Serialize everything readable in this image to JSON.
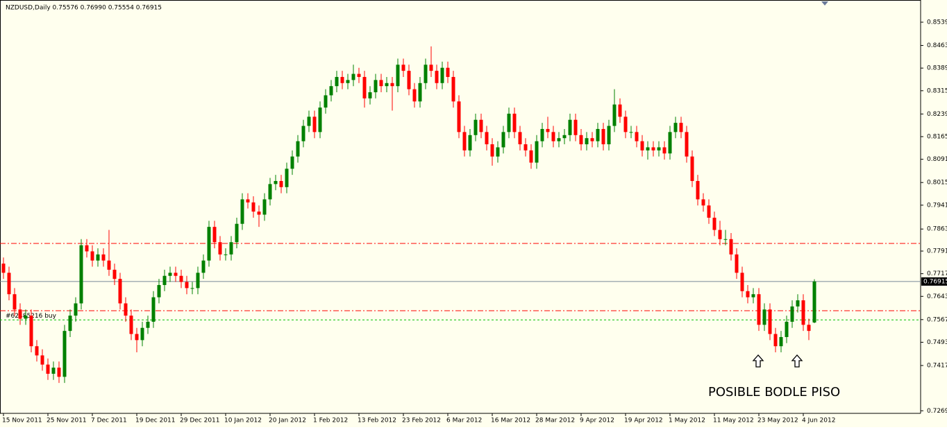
{
  "chart_data": {
    "type": "candlestick",
    "title": "NZDUSD,Daily  0.75576 0.76990 0.75554 0.76915",
    "annotation": "POSIBLE BODLE PISO",
    "up_color": "#008000",
    "down_color": "#ff0000",
    "background": "#ffffee",
    "categories": [
      "15 Nov 2011",
      null,
      null,
      null,
      null,
      null,
      null,
      null,
      "25 Nov 2011",
      null,
      null,
      null,
      null,
      null,
      null,
      null,
      "7 Dec 2011",
      null,
      null,
      null,
      null,
      null,
      null,
      null,
      "19 Dec 2011",
      null,
      null,
      null,
      null,
      null,
      null,
      null,
      "29 Dec 2011",
      null,
      null,
      null,
      null,
      null,
      null,
      null,
      "10 Jan 2012",
      null,
      null,
      null,
      null,
      null,
      null,
      null,
      "20 Jan 2012",
      null,
      null,
      null,
      null,
      null,
      null,
      null,
      "1 Feb 2012",
      null,
      null,
      null,
      null,
      null,
      null,
      null,
      "13 Feb 2012",
      null,
      null,
      null,
      null,
      null,
      null,
      null,
      "23 Feb 2012",
      null,
      null,
      null,
      null,
      null,
      null,
      null,
      "6 Mar 2012",
      null,
      null,
      null,
      null,
      null,
      null,
      null,
      "16 Mar 2012",
      null,
      null,
      null,
      null,
      null,
      null,
      null,
      "28 Mar 2012",
      null,
      null,
      null,
      null,
      null,
      null,
      null,
      "9 Apr 2012",
      null,
      null,
      null,
      null,
      null,
      null,
      null,
      "19 Apr 2012",
      null,
      null,
      null,
      null,
      null,
      null,
      null,
      "1 May 2012",
      null,
      null,
      null,
      null,
      null,
      null,
      null,
      "11 May 2012",
      null,
      null,
      null,
      null,
      null,
      null,
      null,
      "23 May 2012",
      null,
      null,
      null,
      null,
      null,
      null,
      null,
      "4 Jun 2012",
      null,
      null
    ],
    "open": [
      0.775,
      0.772,
      0.765,
      0.76,
      0.757,
      0.758,
      0.748,
      0.745,
      0.742,
      0.739,
      0.741,
      0.738,
      0.753,
      0.758,
      0.762,
      0.781,
      0.779,
      0.776,
      0.778,
      0.776,
      0.773,
      0.77,
      0.762,
      0.758,
      0.752,
      0.75,
      0.754,
      0.756,
      0.764,
      0.768,
      0.771,
      0.772,
      0.771,
      0.769,
      0.767,
      0.767,
      0.772,
      0.776,
      0.787,
      0.782,
      0.778,
      0.778,
      0.782,
      0.788,
      0.796,
      0.795,
      0.792,
      0.791,
      0.796,
      0.801,
      0.802,
      0.8,
      0.806,
      0.81,
      0.815,
      0.82,
      0.823,
      0.818,
      0.826,
      0.83,
      0.833,
      0.836,
      0.834,
      0.835,
      0.837,
      0.836,
      0.829,
      0.831,
      0.835,
      0.833,
      0.834,
      0.833,
      0.84,
      0.838,
      0.832,
      0.828,
      0.834,
      0.84,
      0.838,
      0.834,
      0.839,
      0.836,
      0.828,
      0.818,
      0.812,
      0.817,
      0.822,
      0.818,
      0.814,
      0.81,
      0.813,
      0.818,
      0.824,
      0.818,
      0.814,
      0.812,
      0.808,
      0.815,
      0.819,
      0.818,
      0.815,
      0.816,
      0.817,
      0.822,
      0.817,
      0.814,
      0.816,
      0.815,
      0.819,
      0.814,
      0.82,
      0.827,
      0.823,
      0.818,
      0.818,
      0.815,
      0.812,
      0.813,
      0.812,
      0.813,
      0.811,
      0.818,
      0.821,
      0.818,
      0.81,
      0.802,
      0.796,
      0.794,
      0.79,
      0.786,
      0.783,
      0.783,
      0.778,
      0.772,
      0.766,
      0.764,
      0.765,
      0.755,
      0.76,
      0.752,
      0.748,
      0.751,
      0.756,
      0.761,
      0.763,
      0.755,
      0.75576
    ],
    "high": [
      0.777,
      0.774,
      0.767,
      0.762,
      0.76,
      0.76,
      0.75,
      0.747,
      0.744,
      0.743,
      0.743,
      0.755,
      0.76,
      0.764,
      0.783,
      0.783,
      0.781,
      0.78,
      0.78,
      0.786,
      0.775,
      0.772,
      0.764,
      0.76,
      0.754,
      0.756,
      0.758,
      0.766,
      0.77,
      0.773,
      0.774,
      0.774,
      0.773,
      0.771,
      0.769,
      0.774,
      0.778,
      0.789,
      0.789,
      0.784,
      0.78,
      0.784,
      0.79,
      0.798,
      0.798,
      0.797,
      0.794,
      0.798,
      0.803,
      0.804,
      0.804,
      0.808,
      0.812,
      0.817,
      0.822,
      0.825,
      0.825,
      0.828,
      0.832,
      0.835,
      0.838,
      0.838,
      0.837,
      0.84,
      0.839,
      0.838,
      0.833,
      0.837,
      0.837,
      0.836,
      0.836,
      0.842,
      0.842,
      0.84,
      0.834,
      0.836,
      0.842,
      0.846,
      0.84,
      0.841,
      0.841,
      0.838,
      0.83,
      0.82,
      0.819,
      0.824,
      0.824,
      0.82,
      0.816,
      0.815,
      0.82,
      0.826,
      0.826,
      0.82,
      0.816,
      0.814,
      0.817,
      0.821,
      0.823,
      0.82,
      0.818,
      0.819,
      0.824,
      0.824,
      0.819,
      0.818,
      0.818,
      0.821,
      0.821,
      0.822,
      0.832,
      0.829,
      0.825,
      0.82,
      0.82,
      0.817,
      0.815,
      0.815,
      0.815,
      0.815,
      0.82,
      0.823,
      0.823,
      0.82,
      0.812,
      0.804,
      0.798,
      0.796,
      0.792,
      0.789,
      0.786,
      0.785,
      0.78,
      0.774,
      0.768,
      0.767,
      0.767,
      0.762,
      0.762,
      0.754,
      0.753,
      0.758,
      0.763,
      0.765,
      0.765,
      0.757,
      0.7699
    ],
    "low": [
      0.77,
      0.763,
      0.758,
      0.755,
      0.755,
      0.746,
      0.743,
      0.74,
      0.737,
      0.737,
      0.736,
      0.736,
      0.751,
      0.756,
      0.76,
      0.777,
      0.774,
      0.774,
      0.774,
      0.771,
      0.768,
      0.76,
      0.756,
      0.75,
      0.746,
      0.748,
      0.752,
      0.754,
      0.762,
      0.766,
      0.769,
      0.769,
      0.767,
      0.765,
      0.765,
      0.765,
      0.77,
      0.774,
      0.78,
      0.776,
      0.776,
      0.776,
      0.78,
      0.786,
      0.793,
      0.79,
      0.787,
      0.789,
      0.794,
      0.799,
      0.798,
      0.798,
      0.804,
      0.808,
      0.813,
      0.818,
      0.816,
      0.816,
      0.824,
      0.828,
      0.831,
      0.832,
      0.832,
      0.833,
      0.834,
      0.826,
      0.827,
      0.829,
      0.831,
      0.831,
      0.825,
      0.831,
      0.836,
      0.83,
      0.826,
      0.826,
      0.832,
      0.836,
      0.832,
      0.832,
      0.834,
      0.826,
      0.816,
      0.81,
      0.81,
      0.815,
      0.816,
      0.812,
      0.807,
      0.808,
      0.811,
      0.816,
      0.816,
      0.812,
      0.81,
      0.806,
      0.806,
      0.813,
      0.816,
      0.813,
      0.813,
      0.814,
      0.815,
      0.815,
      0.812,
      0.812,
      0.813,
      0.813,
      0.812,
      0.812,
      0.818,
      0.821,
      0.816,
      0.816,
      0.813,
      0.81,
      0.809,
      0.81,
      0.81,
      0.809,
      0.809,
      0.816,
      0.816,
      0.808,
      0.8,
      0.794,
      0.792,
      0.788,
      0.784,
      0.781,
      0.781,
      0.776,
      0.77,
      0.764,
      0.762,
      0.762,
      0.753,
      0.753,
      0.75,
      0.746,
      0.746,
      0.749,
      0.754,
      0.759,
      0.753,
      0.75,
      0.75554
    ],
    "close": [
      0.772,
      0.765,
      0.76,
      0.757,
      0.758,
      0.748,
      0.745,
      0.742,
      0.739,
      0.741,
      0.738,
      0.753,
      0.758,
      0.762,
      0.781,
      0.779,
      0.776,
      0.778,
      0.776,
      0.773,
      0.77,
      0.762,
      0.758,
      0.752,
      0.75,
      0.754,
      0.756,
      0.764,
      0.768,
      0.771,
      0.772,
      0.771,
      0.769,
      0.767,
      0.767,
      0.772,
      0.776,
      0.787,
      0.782,
      0.778,
      0.778,
      0.782,
      0.788,
      0.796,
      0.795,
      0.792,
      0.791,
      0.796,
      0.801,
      0.802,
      0.8,
      0.806,
      0.81,
      0.815,
      0.82,
      0.823,
      0.818,
      0.826,
      0.83,
      0.833,
      0.836,
      0.834,
      0.835,
      0.837,
      0.836,
      0.829,
      0.831,
      0.835,
      0.833,
      0.834,
      0.833,
      0.84,
      0.838,
      0.832,
      0.828,
      0.834,
      0.84,
      0.838,
      0.834,
      0.839,
      0.836,
      0.828,
      0.818,
      0.812,
      0.817,
      0.822,
      0.818,
      0.814,
      0.81,
      0.813,
      0.818,
      0.824,
      0.818,
      0.814,
      0.812,
      0.808,
      0.815,
      0.819,
      0.818,
      0.815,
      0.816,
      0.817,
      0.822,
      0.817,
      0.814,
      0.816,
      0.815,
      0.819,
      0.814,
      0.82,
      0.827,
      0.823,
      0.818,
      0.818,
      0.815,
      0.812,
      0.813,
      0.812,
      0.813,
      0.811,
      0.818,
      0.821,
      0.818,
      0.81,
      0.802,
      0.796,
      0.794,
      0.79,
      0.786,
      0.783,
      0.783,
      0.778,
      0.772,
      0.766,
      0.764,
      0.765,
      0.755,
      0.76,
      0.752,
      0.748,
      0.751,
      0.756,
      0.761,
      0.763,
      0.755,
      0.753,
      0.76915
    ],
    "ylim": [
      0.72606,
      0.86115
    ],
    "yticks": [
      {
        "value": 0.8539,
        "label": "0.85390"
      },
      {
        "value": 0.8463,
        "label": "0.84630"
      },
      {
        "value": 0.8389,
        "label": "0.83890"
      },
      {
        "value": 0.8315,
        "label": "0.83150"
      },
      {
        "value": 0.8239,
        "label": "0.82390"
      },
      {
        "value": 0.8165,
        "label": "0.81650"
      },
      {
        "value": 0.8091,
        "label": "0.80910"
      },
      {
        "value": 0.8015,
        "label": "0.80150"
      },
      {
        "value": 0.7941,
        "label": "0.79410"
      },
      {
        "value": 0.7863,
        "label": "0.78630"
      },
      {
        "value": 0.7791,
        "label": "0.77910"
      },
      {
        "value": 0.7717,
        "label": "0.77170"
      },
      {
        "value": 0.7643,
        "label": "0.76430"
      },
      {
        "value": 0.7567,
        "label": "0.75670"
      },
      {
        "value": 0.7493,
        "label": "0.74930"
      },
      {
        "value": 0.7417,
        "label": "0.74170"
      },
      {
        "value": 0.7269,
        "label": "0.72690"
      }
    ],
    "hlines": [
      {
        "value": 0.7816,
        "color": "#ff0000",
        "style": "dashdot"
      },
      {
        "value": 0.7596,
        "color": "#ff0000",
        "style": "dashdot"
      },
      {
        "value": 0.7566,
        "color": "#00c000",
        "style": "dash",
        "label": "#62485216 buy"
      }
    ],
    "last_price_color": "#778899"
  }
}
